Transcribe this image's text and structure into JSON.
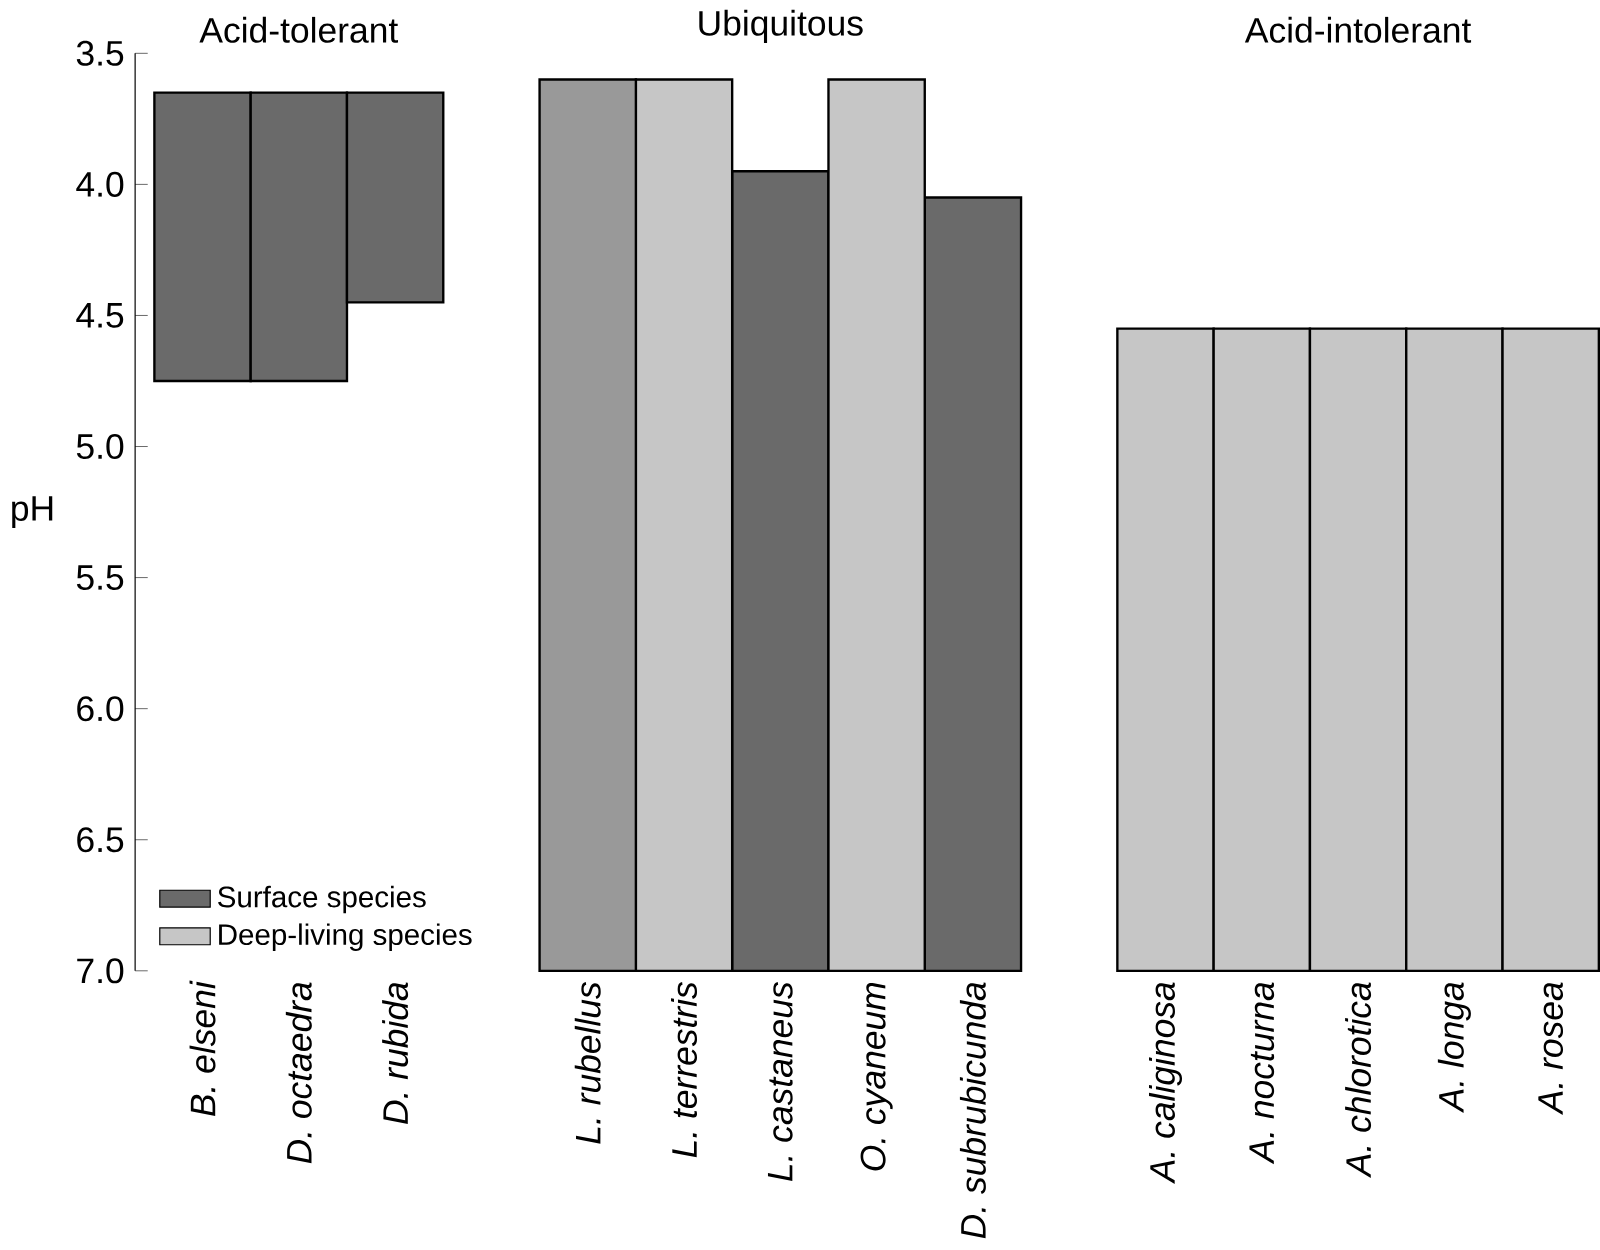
{
  "chart_data": {
    "type": "bar",
    "ylabel": "pH",
    "categories": [
      "B. elseni",
      "D. octaedra",
      "D. rubida",
      null,
      "L. rubellus",
      "L. terrestris",
      "L. castaneus",
      "O. cyaneum",
      "D. subrubicunda",
      null,
      "A. caliginosa",
      "A. nocturna",
      "A. chlorotica",
      "A. longa",
      "A. rosea"
    ],
    "series": [
      {
        "name": "Surface species",
        "color": "#6a6a6a",
        "base": [
          3.65,
          3.65,
          3.65,
          null,
          null,
          null,
          3.95,
          null,
          4.05,
          null,
          null,
          null,
          null,
          null,
          null
        ],
        "values": [
          1.1,
          1.1,
          0.8,
          null,
          null,
          null,
          3.05,
          null,
          2.95,
          null,
          null,
          null,
          null,
          null,
          null
        ]
      },
      {
        "name": "Deep-living species",
        "color": "#c6c6c6",
        "base": [
          null,
          null,
          null,
          null,
          null,
          3.6,
          null,
          3.6,
          null,
          null,
          4.55,
          4.55,
          4.55,
          4.55,
          4.55
        ],
        "values": [
          null,
          null,
          null,
          null,
          null,
          3.4,
          null,
          3.4,
          null,
          null,
          2.45,
          2.45,
          2.45,
          2.45,
          2.45
        ]
      },
      {
        "color": "#999999",
        "base": [
          null,
          null,
          null,
          null,
          3.6,
          null,
          null,
          null,
          null,
          null,
          null,
          null,
          null,
          null,
          null
        ],
        "values": [
          null,
          null,
          null,
          null,
          3.4,
          null,
          null,
          null,
          null,
          null,
          null,
          null,
          null,
          null,
          null
        ]
      }
    ],
    "ylim": [
      7.0,
      3.5
    ],
    "yticks": [
      {
        "value": 3.5,
        "label": "3.5"
      },
      {
        "value": 4.0,
        "label": "4.0"
      },
      {
        "value": 4.5,
        "label": "4.5"
      },
      {
        "value": 5.0,
        "label": "5.0"
      },
      {
        "value": 5.5,
        "label": "5.5"
      },
      {
        "value": 6.0,
        "label": "6.0"
      },
      {
        "value": 6.5,
        "label": "6.5"
      },
      {
        "value": 7.0,
        "label": "7.0"
      }
    ],
    "legend": "bottom left",
    "annotations": [
      "Acid-tolerant",
      "Ubiquitous",
      "Acid-intolerant"
    ]
  }
}
